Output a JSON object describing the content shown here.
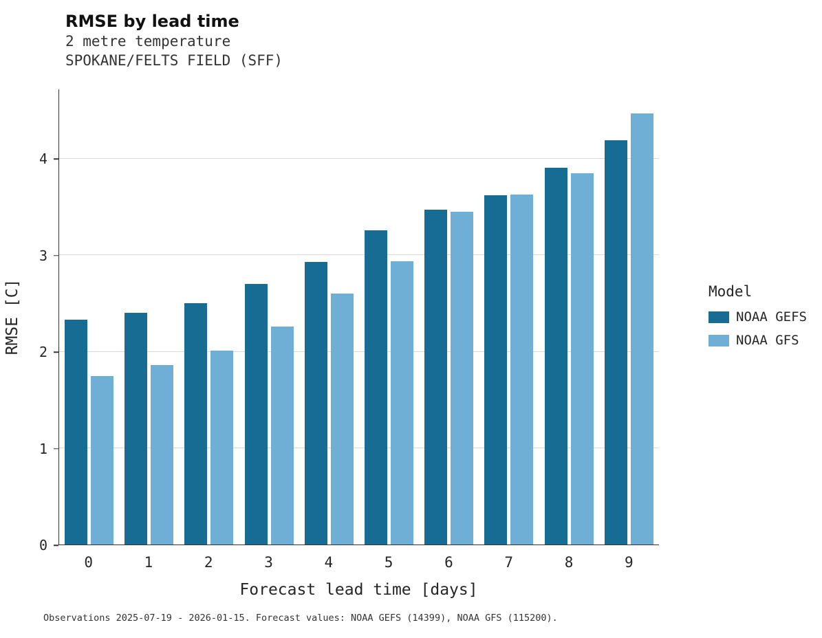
{
  "header": {
    "title": "RMSE by lead time",
    "subtitle1": "2 metre temperature",
    "subtitle2": "SPOKANE/FELTS FIELD (SFF)"
  },
  "caption": "Observations 2025-07-19 - 2026-01-15. Forecast values: NOAA GEFS (14399), NOAA GFS (115200).",
  "legend": {
    "title": "Model",
    "items": [
      {
        "label": "NOAA GEFS",
        "color": "#176c94"
      },
      {
        "label": "NOAA GFS",
        "color": "#6fafd6"
      }
    ]
  },
  "chart_data": {
    "type": "bar",
    "title": "RMSE by lead time",
    "subtitle": "2 metre temperature — SPOKANE/FELTS FIELD (SFF)",
    "categories": [
      "0",
      "1",
      "2",
      "3",
      "4",
      "5",
      "6",
      "7",
      "8",
      "9"
    ],
    "series": [
      {
        "name": "NOAA GEFS",
        "color": "#176c94",
        "values": [
          2.33,
          2.4,
          2.5,
          2.7,
          2.93,
          3.26,
          3.47,
          3.62,
          3.91,
          4.19
        ]
      },
      {
        "name": "NOAA GFS",
        "color": "#6fafd6",
        "values": [
          1.75,
          1.86,
          2.01,
          2.26,
          2.6,
          2.94,
          3.45,
          3.63,
          3.85,
          4.47
        ]
      }
    ],
    "xlabel": "Forecast lead time [days]",
    "ylabel": "RMSE [C]",
    "ylim": [
      0,
      4.72
    ],
    "yticks": [
      0,
      1,
      2,
      3,
      4
    ],
    "grid": "horizontal",
    "gridline_color": "#d9d9d9",
    "legend_position": "right"
  }
}
